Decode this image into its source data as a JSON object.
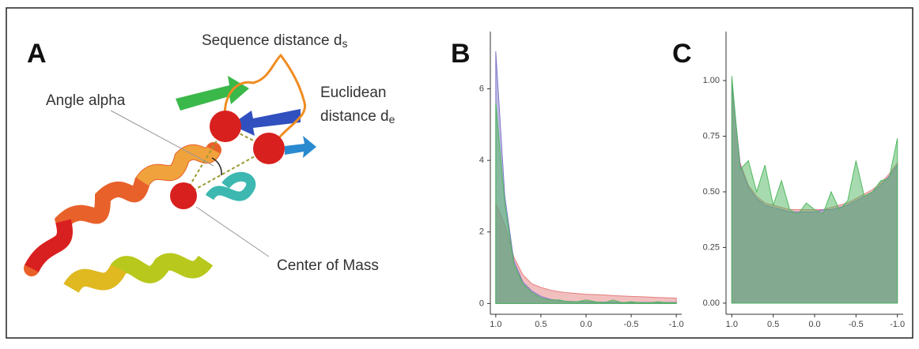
{
  "panel_a": {
    "label": "A",
    "labels": [
      {
        "text": "Sequence distance d",
        "sub": "s"
      },
      {
        "text": "Euclidean"
      },
      {
        "text": "distance d",
        "sub": "e"
      },
      {
        "text": "Angle alpha"
      },
      {
        "text": "Center of Mass"
      }
    ]
  },
  "chart_data": [
    {
      "type": "area",
      "label": "B",
      "x": [
        1.0,
        0.9,
        0.8,
        0.7,
        0.6,
        0.5,
        0.4,
        0.3,
        0.2,
        0.1,
        0.0,
        -0.1,
        -0.2,
        -0.3,
        -0.4,
        -0.5,
        -0.6,
        -0.7,
        -0.8,
        -0.9,
        -1.0
      ],
      "series": [
        {
          "color": "#e57f7f",
          "values": [
            2.8,
            2.2,
            1.3,
            0.8,
            0.55,
            0.45,
            0.38,
            0.33,
            0.3,
            0.28,
            0.26,
            0.25,
            0.24,
            0.22,
            0.21,
            0.2,
            0.19,
            0.18,
            0.17,
            0.16,
            0.15
          ]
        },
        {
          "color": "#7f78c8",
          "values": [
            7.05,
            3.0,
            1.2,
            0.6,
            0.35,
            0.2,
            0.12,
            0.08,
            0.06,
            0.05,
            0.05,
            0.04,
            0.04,
            0.04,
            0.03,
            0.03,
            0.03,
            0.03,
            0.03,
            0.03,
            0.03
          ]
        },
        {
          "color": "#4fb85f",
          "values": [
            5.6,
            2.8,
            1.1,
            0.55,
            0.3,
            0.15,
            0.1,
            0.1,
            0.05,
            0.05,
            0.1,
            0.05,
            0.02,
            0.1,
            0.02,
            0.05,
            0.02,
            0.02,
            0.05,
            0.02,
            0.02
          ]
        }
      ],
      "xlim": [
        1.06,
        -1.06
      ],
      "xticks": [
        {
          "value": 1,
          "label": "1.0"
        },
        0.5,
        {
          "value": 0,
          "label": "0.0"
        },
        -0.5,
        {
          "value": -1,
          "label": "-1.0"
        }
      ],
      "ylim": [
        -0.3,
        7.6
      ],
      "yticks": [
        0,
        2,
        4,
        6
      ]
    },
    {
      "type": "area",
      "label": "C",
      "x": [
        1.0,
        0.9,
        0.8,
        0.7,
        0.6,
        0.5,
        0.4,
        0.3,
        0.2,
        0.1,
        0.0,
        -0.1,
        -0.2,
        -0.3,
        -0.4,
        -0.5,
        -0.6,
        -0.7,
        -0.8,
        -0.9,
        -1.0
      ],
      "series": [
        {
          "color": "#e57f7f",
          "values": [
            0.98,
            0.63,
            0.53,
            0.48,
            0.45,
            0.44,
            0.43,
            0.42,
            0.42,
            0.42,
            0.42,
            0.42,
            0.43,
            0.44,
            0.45,
            0.47,
            0.49,
            0.51,
            0.54,
            0.58,
            0.63
          ]
        },
        {
          "color": "#7f78c8",
          "values": [
            1.0,
            0.62,
            0.52,
            0.47,
            0.44,
            0.43,
            0.42,
            0.41,
            0.41,
            0.41,
            0.41,
            0.42,
            0.42,
            0.43,
            0.44,
            0.46,
            0.48,
            0.5,
            0.53,
            0.57,
            0.62
          ]
        },
        {
          "color": "#4fb85f",
          "values": [
            1.02,
            0.6,
            0.64,
            0.5,
            0.62,
            0.44,
            0.55,
            0.42,
            0.4,
            0.45,
            0.42,
            0.4,
            0.5,
            0.42,
            0.46,
            0.64,
            0.48,
            0.5,
            0.55,
            0.56,
            0.74
          ]
        }
      ],
      "xlim": [
        1.07,
        -1.07
      ],
      "xticks": [
        {
          "value": 1,
          "label": "1.0"
        },
        0.5,
        {
          "value": 0,
          "label": "0.0"
        },
        -0.5,
        {
          "value": -1,
          "label": "-1.0"
        }
      ],
      "ylim": [
        -0.05,
        1.22
      ],
      "yticks": [
        {
          "value": 0,
          "label": "0.00"
        },
        0.25,
        {
          "value": 0.5,
          "label": "0.50"
        },
        0.75,
        {
          "value": 1,
          "label": "1.00"
        }
      ]
    }
  ]
}
